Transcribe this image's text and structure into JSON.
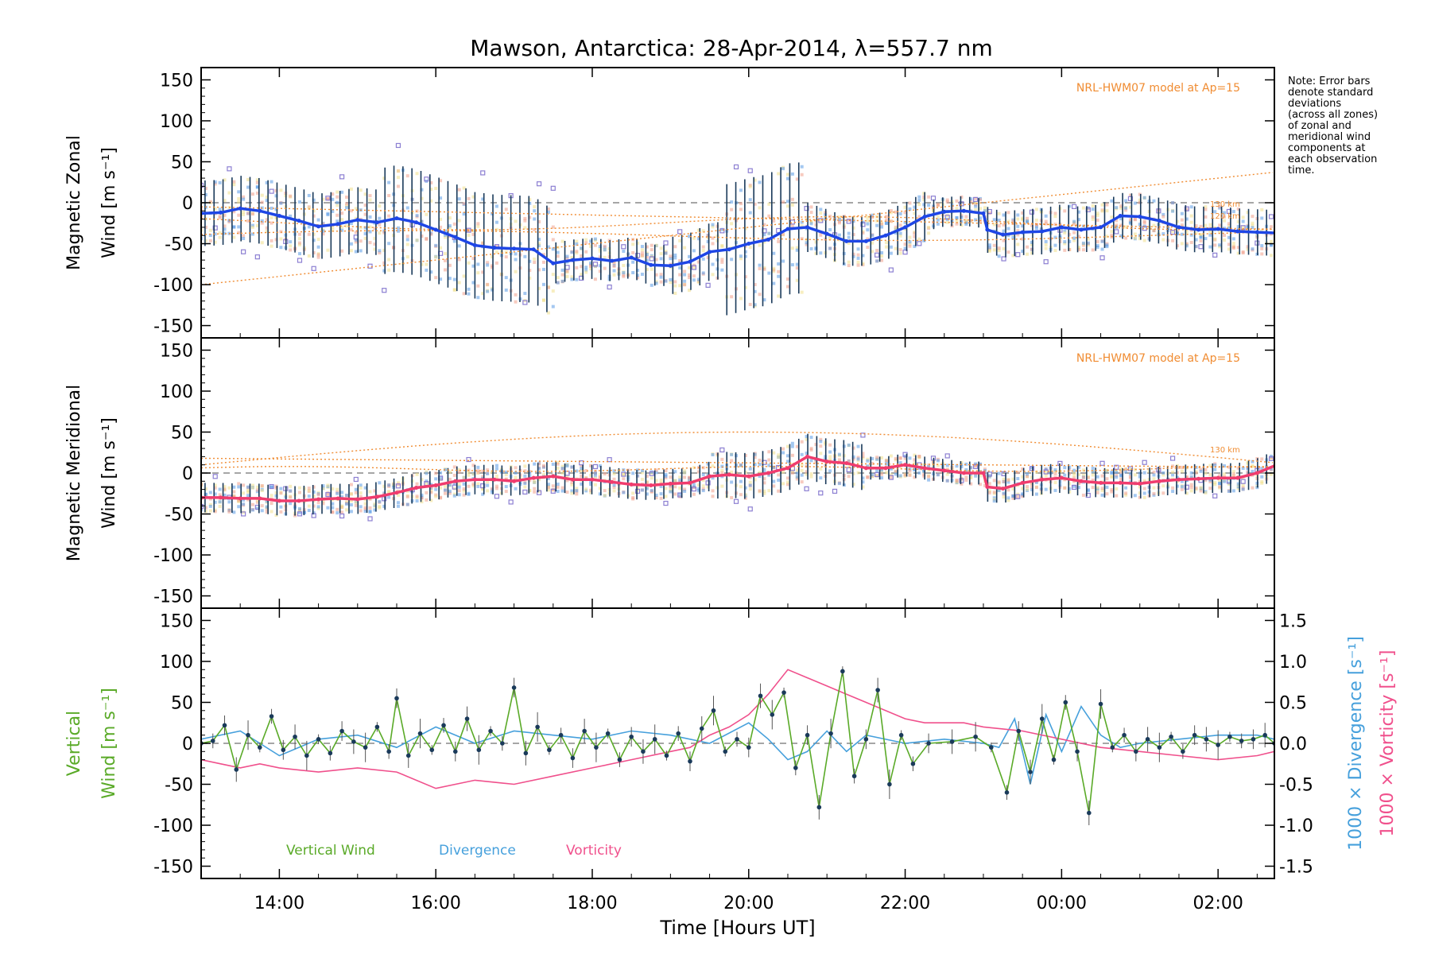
{
  "title": "Mawson, Antarctica: 28-Apr-2014, λ=557.7 nm",
  "note": [
    "Note: Error bars",
    "denote standard",
    "deviations",
    "(across all zones)",
    "of zonal and",
    "meridional wind",
    "components at",
    "each observation",
    "time."
  ],
  "colors": {
    "zonal": "#1e46e6",
    "zonal_light": "#5a9be6",
    "meridional": "#f03c6e",
    "errorbar": "#1a3a5a",
    "scatter": "#8c7fd2",
    "model": "#f08c32",
    "vertical": "#5aaa28",
    "divergence": "#46a0dc",
    "vorticity": "#f0508c",
    "zero": "#888888",
    "halo_orange": "#f0a08c",
    "halo_yellow": "#f0e08c"
  },
  "chart_data": [
    {
      "type": "line",
      "panel": "zonal",
      "ylabel_lines": [
        "Magnetic Zonal",
        "Wind [m s⁻¹]"
      ],
      "ylim": [
        -165,
        165
      ],
      "yticks": [
        -150,
        -100,
        -50,
        0,
        50,
        100,
        150
      ],
      "model_label": "NRL-HWM07 model at Ap=15",
      "model_alt_labels": [
        "130 km",
        "120 km"
      ],
      "series": [
        {
          "role": "fitted-wind",
          "x": [
            13.0,
            13.25,
            13.5,
            13.75,
            14.0,
            14.25,
            14.5,
            14.75,
            15.0,
            15.25,
            15.5,
            15.75,
            16.0,
            16.25,
            16.5,
            16.75,
            17.0,
            17.25,
            17.5,
            17.75,
            18.0,
            18.25,
            18.5,
            18.75,
            19.0,
            19.25,
            19.5,
            19.75,
            20.0,
            20.25,
            20.5,
            20.75,
            21.0,
            21.25,
            21.5,
            21.75,
            22.0,
            22.25,
            22.5,
            22.75,
            23.0,
            23.05,
            23.25,
            23.5,
            23.75,
            24.0,
            24.25,
            24.5,
            24.75,
            25.0,
            25.25,
            25.5,
            25.75,
            26.0,
            26.25,
            26.5,
            26.75
          ],
          "y": [
            -13,
            -12,
            -7,
            -10,
            -16,
            -22,
            -29,
            -26,
            -21,
            -24,
            -19,
            -24,
            -33,
            -42,
            -52,
            -55,
            -56,
            -57,
            -74,
            -70,
            -68,
            -71,
            -67,
            -76,
            -77,
            -72,
            -60,
            -57,
            -50,
            -45,
            -32,
            -30,
            -38,
            -47,
            -47,
            -40,
            -30,
            -17,
            -11,
            -10,
            -13,
            -33,
            -39,
            -36,
            -35,
            -30,
            -33,
            -30,
            -16,
            -17,
            -22,
            -30,
            -33,
            -32,
            -35,
            -36,
            -37
          ]
        }
      ]
    },
    {
      "type": "line",
      "panel": "meridional",
      "ylabel_lines": [
        "Magnetic Meridional",
        "Wind [m s⁻¹]"
      ],
      "ylim": [
        -165,
        165
      ],
      "yticks": [
        -150,
        -100,
        -50,
        0,
        50,
        100,
        150
      ],
      "model_label": "NRL-HWM07 model at Ap=15",
      "model_alt_labels": [
        "130 km"
      ],
      "series": [
        {
          "role": "fitted-wind",
          "x": [
            13.0,
            13.25,
            13.5,
            13.75,
            14.0,
            14.25,
            14.5,
            14.75,
            15.0,
            15.25,
            15.5,
            15.75,
            16.0,
            16.25,
            16.5,
            16.75,
            17.0,
            17.25,
            17.5,
            17.75,
            18.0,
            18.25,
            18.5,
            18.75,
            19.0,
            19.25,
            19.5,
            19.75,
            20.0,
            20.25,
            20.5,
            20.75,
            21.0,
            21.25,
            21.5,
            21.75,
            22.0,
            22.25,
            22.5,
            22.75,
            23.0,
            23.05,
            23.25,
            23.5,
            23.75,
            24.0,
            24.25,
            24.5,
            24.75,
            25.0,
            25.25,
            25.5,
            25.75,
            26.0,
            26.25,
            26.5,
            26.75
          ],
          "y": [
            -30,
            -30,
            -31,
            -31,
            -34,
            -34,
            -32,
            -31,
            -32,
            -29,
            -24,
            -18,
            -15,
            -10,
            -8,
            -8,
            -10,
            -6,
            -4,
            -8,
            -8,
            -11,
            -14,
            -15,
            -13,
            -12,
            -4,
            -2,
            -4,
            0,
            6,
            20,
            14,
            12,
            6,
            6,
            10,
            6,
            3,
            0,
            0,
            -17,
            -19,
            -12,
            -8,
            -6,
            -10,
            -12,
            -12,
            -13,
            -10,
            -8,
            -7,
            -6,
            -6,
            0,
            10
          ]
        }
      ]
    },
    {
      "type": "line",
      "panel": "vertical",
      "ylabel_lines": [
        "Vertical",
        "Wind [m s⁻¹]"
      ],
      "ylim": [
        -165,
        165
      ],
      "yticks": [
        -150,
        -100,
        -50,
        0,
        50,
        100,
        150
      ],
      "y2_ticks": [
        -1.5,
        -1.0,
        -0.5,
        0.0,
        0.5,
        1.0,
        1.5
      ],
      "y2_labels": [
        "1000 × Divergence [s⁻¹]",
        "1000 × Vorticity [s⁻¹]"
      ],
      "legend": [
        "Vertical Wind",
        "Divergence",
        "Vorticity"
      ],
      "xlabel": "Time [Hours UT]",
      "xticks": [
        "14:00",
        "16:00",
        "18:00",
        "20:00",
        "22:00",
        "00:00",
        "02:00"
      ],
      "xlim": [
        13.0,
        26.72
      ],
      "series": [
        {
          "name": "Vertical Wind",
          "x": [
            13.0,
            13.15,
            13.3,
            13.45,
            13.6,
            13.75,
            13.9,
            14.05,
            14.2,
            14.35,
            14.5,
            14.65,
            14.8,
            14.95,
            15.1,
            15.25,
            15.4,
            15.5,
            15.65,
            15.8,
            15.95,
            16.1,
            16.25,
            16.4,
            16.55,
            16.7,
            16.85,
            17.0,
            17.15,
            17.3,
            17.45,
            17.6,
            17.75,
            17.9,
            18.05,
            18.2,
            18.35,
            18.5,
            18.65,
            18.8,
            18.95,
            19.1,
            19.25,
            19.4,
            19.55,
            19.7,
            19.85,
            20.0,
            20.15,
            20.3,
            20.45,
            20.6,
            20.75,
            20.9,
            21.05,
            21.2,
            21.35,
            21.5,
            21.65,
            21.8,
            21.95,
            22.1,
            22.3,
            22.6,
            22.9,
            23.1,
            23.3,
            23.45,
            23.6,
            23.75,
            23.9,
            24.05,
            24.2,
            24.35,
            24.5,
            24.65,
            24.8,
            24.95,
            25.1,
            25.25,
            25.4,
            25.55,
            25.7,
            25.85,
            26.0,
            26.15,
            26.3,
            26.45,
            26.6,
            26.72
          ],
          "y": [
            0,
            3,
            22,
            -32,
            10,
            -5,
            33,
            -8,
            8,
            -15,
            5,
            -12,
            15,
            2,
            -5,
            20,
            -10,
            55,
            -15,
            12,
            -8,
            22,
            -10,
            30,
            -8,
            15,
            0,
            68,
            -12,
            20,
            -8,
            10,
            -18,
            15,
            -5,
            12,
            -20,
            8,
            -10,
            5,
            -15,
            12,
            -22,
            18,
            40,
            -10,
            5,
            -5,
            58,
            35,
            62,
            -30,
            10,
            -78,
            12,
            88,
            -40,
            5,
            65,
            -50,
            10,
            -25,
            0,
            2,
            8,
            -5,
            -60,
            15,
            -35,
            30,
            -20,
            50,
            -10,
            -85,
            48,
            -5,
            10,
            -10,
            5,
            -5,
            8,
            -10,
            10,
            5,
            -2,
            8,
            3,
            5,
            10,
            0
          ]
        },
        {
          "name": "Divergence",
          "x": [
            13.0,
            13.5,
            14.0,
            14.5,
            15.0,
            15.5,
            16.0,
            16.5,
            17.0,
            17.5,
            18.0,
            18.5,
            19.0,
            19.5,
            20.0,
            20.25,
            20.5,
            20.75,
            21.0,
            21.25,
            21.5,
            22.0,
            22.5,
            23.0,
            23.2,
            23.4,
            23.6,
            23.8,
            24.0,
            24.25,
            24.5,
            24.75,
            25.0,
            25.5,
            26.0,
            26.5,
            26.72
          ],
          "y": [
            0.05,
            0.15,
            -0.15,
            0.05,
            0.1,
            -0.05,
            0.2,
            0.0,
            0.15,
            0.1,
            0.05,
            0.15,
            0.1,
            0.0,
            0.25,
            0.05,
            -0.2,
            -0.1,
            0.15,
            -0.1,
            0.1,
            0.0,
            0.05,
            0.0,
            -0.05,
            0.3,
            -0.5,
            0.35,
            -0.1,
            0.45,
            0.1,
            -0.05,
            0.0,
            0.05,
            0.1,
            0.1,
            0.05
          ]
        },
        {
          "name": "Vorticity",
          "x": [
            13.0,
            13.25,
            13.5,
            13.75,
            14.0,
            14.5,
            15.0,
            15.5,
            16.0,
            16.5,
            17.0,
            17.5,
            18.0,
            18.5,
            19.0,
            19.25,
            19.5,
            19.75,
            20.0,
            20.25,
            20.5,
            20.75,
            21.0,
            21.25,
            21.5,
            22.0,
            22.25,
            22.5,
            22.75,
            23.0,
            23.5,
            24.0,
            24.5,
            25.0,
            25.5,
            26.0,
            26.5,
            26.72
          ],
          "y": [
            -0.2,
            -0.25,
            -0.3,
            -0.25,
            -0.3,
            -0.35,
            -0.3,
            -0.35,
            -0.55,
            -0.45,
            -0.5,
            -0.4,
            -0.3,
            -0.2,
            -0.1,
            -0.05,
            0.1,
            0.2,
            0.35,
            0.6,
            0.9,
            0.8,
            0.7,
            0.6,
            0.5,
            0.3,
            0.25,
            0.25,
            0.25,
            0.2,
            0.15,
            0.05,
            -0.05,
            -0.1,
            -0.15,
            -0.2,
            -0.15,
            -0.1
          ]
        }
      ]
    }
  ]
}
